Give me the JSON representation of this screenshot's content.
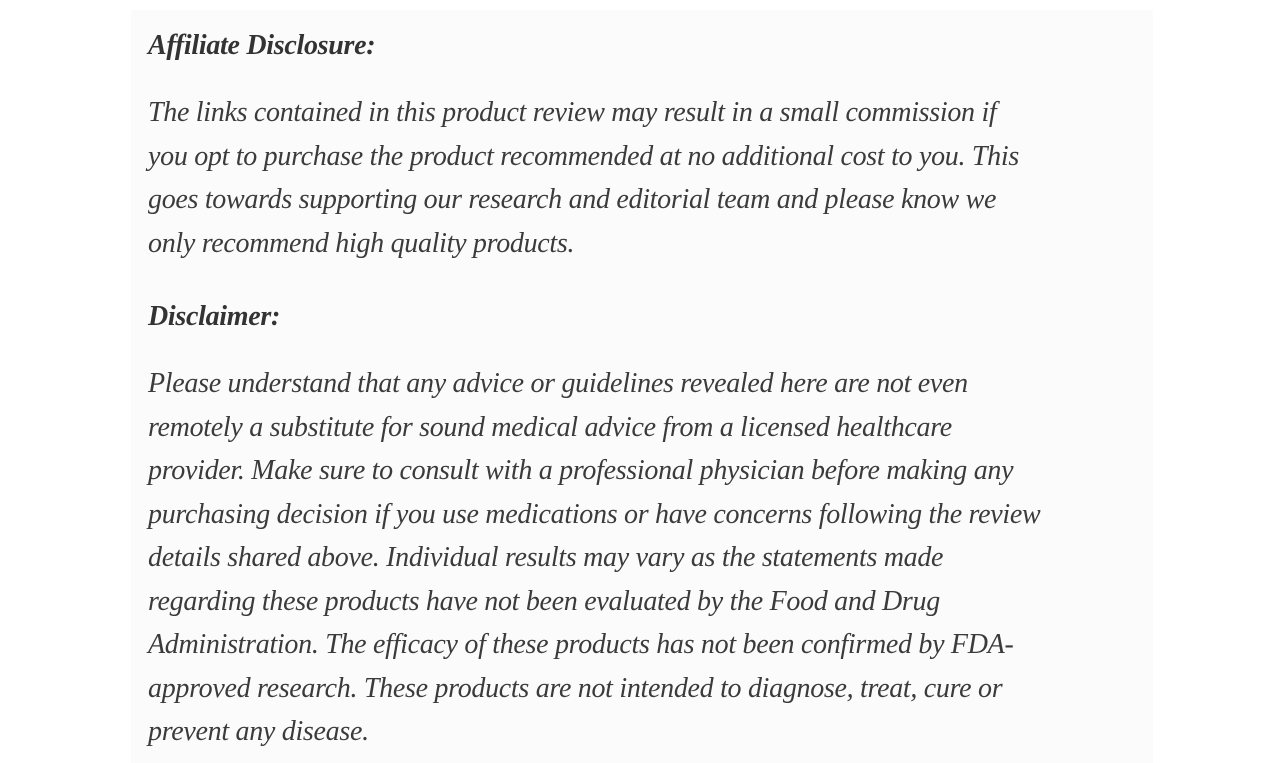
{
  "colors": {
    "page_background": "#ffffff",
    "card_background": "#fbfbfb",
    "heading_text": "#333333",
    "body_text": "#3b3b3b"
  },
  "article": {
    "sections": [
      {
        "heading": "Affiliate Disclosure:",
        "lines": [
          "The links contained in this product review may result in a small commission if",
          "you opt to purchase the product recommended at no additional cost to you. This",
          "goes towards supporting our research and editorial team and please know we",
          "only recommend high quality products."
        ]
      },
      {
        "heading": "Disclaimer:",
        "lines": [
          "Please understand that any advice or guidelines revealed here are not even",
          "remotely a substitute for sound medical advice from a licensed healthcare",
          "provider. Make sure to consult with a professional physician before making any",
          "purchasing decision if you use medications or have concerns following the review",
          "details shared above. Individual results may vary as the statements made",
          "regarding these products have not been evaluated by the Food and Drug",
          "Administration. The efficacy of these products has not been confirmed by FDA-",
          "approved research. These products are not intended to diagnose, treat, cure or",
          "prevent any disease."
        ]
      }
    ]
  }
}
